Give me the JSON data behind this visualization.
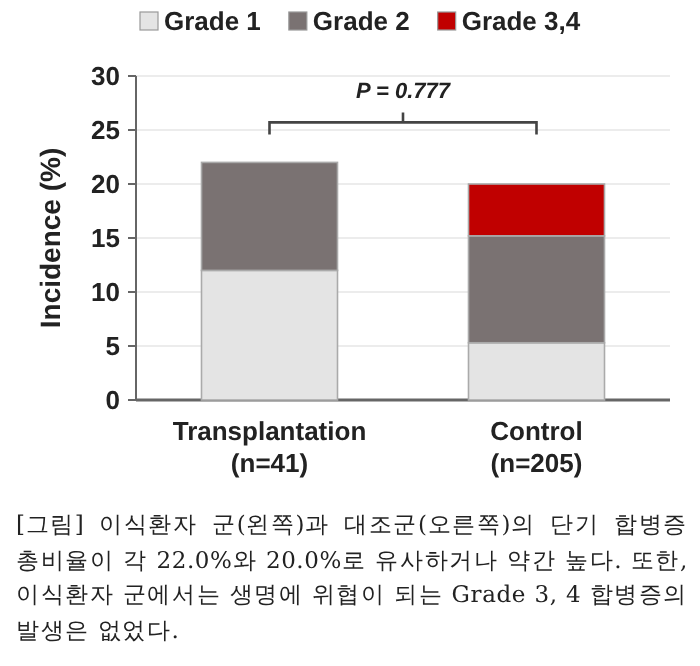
{
  "chart_data": {
    "type": "bar",
    "stacked": true,
    "ylabel": "Incidence (%)",
    "categories": [
      "Transplantation\n(n=41)",
      "Control\n(n=205)"
    ],
    "series": [
      {
        "name": "Grade 1",
        "color": "#e4e4e4",
        "values": [
          12,
          5.3
        ]
      },
      {
        "name": "Grade 2",
        "color": "#7a7272",
        "values": [
          10,
          9.9
        ]
      },
      {
        "name": "Grade 3,4",
        "color": "#c00000",
        "values": [
          0,
          4.8
        ]
      }
    ],
    "ylim": [
      0,
      30
    ],
    "yticks": [
      0,
      5,
      10,
      15,
      20,
      25,
      30
    ],
    "grid": "y",
    "legend": "top",
    "annotations": [
      "P = 0.777",
      "[그림] 이식환자 군(왼쪽)과 대조군(오른쪽)의 단기 합병증 총비율이 각 22.0%와 20.0%로 유사하거나 약간 높다. 또한, 이식환자 군에서는 생명에 위협이 되는 Grade 3, 4 합병증의 발생은 없었다."
    ]
  }
}
